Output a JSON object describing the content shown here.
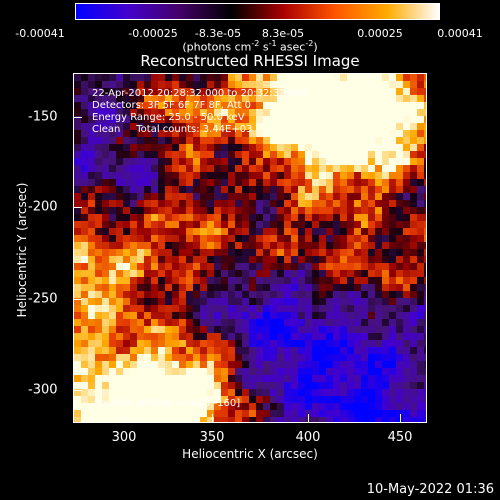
{
  "colorbar": {
    "ticks": [
      "-0.00041",
      "-0.00025",
      "-8.3e-05",
      "8.3e-05",
      "0.00025",
      "0.00041"
    ],
    "unit_prefix": "(photons cm",
    "unit_exp1": "-2",
    "unit_mid1": " s",
    "unit_exp2": "-1",
    "unit_mid2": " asec",
    "unit_exp3": "-2",
    "unit_suffix": ")",
    "colors": [
      "#0000ff",
      "#4400cc",
      "#440066",
      "#000000",
      "#aa0000",
      "#ff5500",
      "#ffaa00",
      "#ffffff"
    ]
  },
  "title": "Reconstructed RHESSI Image",
  "info": {
    "line1": "22-Apr-2012 20:28:32.000 to 20:32:32.000",
    "line2": "Detectors: 3F 5F 6F 7F 8F, Att 0",
    "line3": "Energy Range: 25.0 - 50.0 keV",
    "line4": "Clean     Total counts: 3.44E+03"
  },
  "peak": "Position of Peak = [403,-160]",
  "axes": {
    "xlabel": "Heliocentric X (arcsec)",
    "ylabel": "Heliocentric Y (arcsec)",
    "xticks": [
      "300",
      "350",
      "400",
      "450"
    ],
    "yticks": [
      "-150",
      "-200",
      "-250",
      "-300"
    ]
  },
  "timestamp": "10-May-2022 01:36"
}
